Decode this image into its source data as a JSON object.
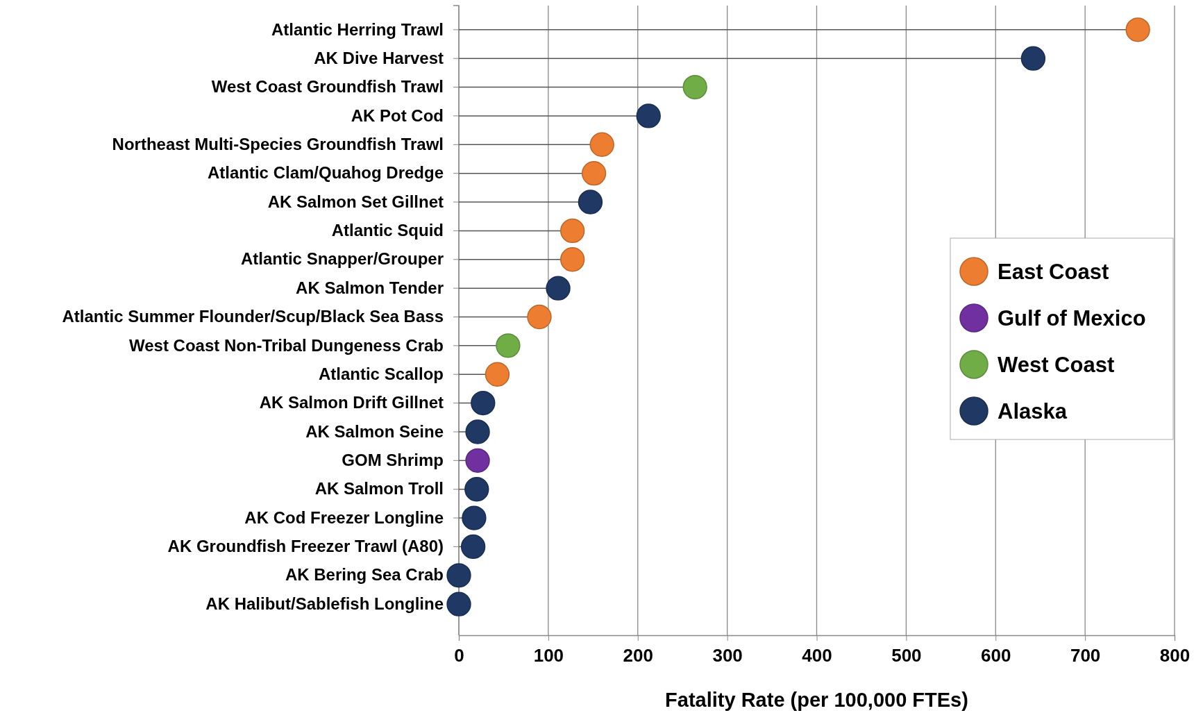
{
  "chart_data": {
    "type": "lollipop",
    "orientation": "horizontal",
    "xlabel": "Fatality Rate (per 100,000 FTEs)",
    "categories": [
      "Atlantic Herring Trawl",
      "AK Dive Harvest",
      "West Coast Groundfish Trawl",
      "AK Pot Cod",
      "Northeast Multi-Species Groundfish Trawl",
      "Atlantic Clam/Quahog Dredge",
      "AK Salmon Set Gillnet",
      "Atlantic Squid",
      "Atlantic Snapper/Grouper",
      "AK Salmon Tender",
      "Atlantic Summer Flounder/Scup/Black Sea Bass",
      "West Coast Non-Tribal Dungeness Crab",
      "Atlantic Scallop",
      "AK Salmon Drift Gillnet",
      "AK Salmon Seine",
      "GOM Shrimp",
      "AK Salmon Troll",
      "AK Cod Freezer Longline",
      "AK Groundfish Freezer Trawl (A80)",
      "AK Bering Sea Crab",
      "AK Halibut/Sablefish Longline"
    ],
    "series": [
      {
        "name": "East Coast",
        "color": "#ed7d31",
        "values": [
          759,
          null,
          null,
          null,
          160,
          151,
          null,
          127,
          127,
          null,
          90,
          null,
          43,
          null,
          null,
          null,
          null,
          null,
          null,
          null,
          null
        ]
      },
      {
        "name": "Gulf of Mexico",
        "color": "#7030a0",
        "values": [
          null,
          null,
          null,
          null,
          null,
          null,
          null,
          null,
          null,
          null,
          null,
          null,
          null,
          null,
          null,
          21,
          null,
          null,
          null,
          null,
          null
        ]
      },
      {
        "name": "West Coast",
        "color": "#70ad47",
        "values": [
          null,
          null,
          264,
          null,
          null,
          null,
          null,
          null,
          null,
          null,
          null,
          55,
          null,
          null,
          null,
          null,
          null,
          null,
          null,
          null,
          null
        ]
      },
      {
        "name": "Alaska",
        "color": "#1f3864",
        "values": [
          null,
          642,
          null,
          212,
          null,
          null,
          147,
          null,
          null,
          111,
          null,
          null,
          null,
          27,
          21,
          null,
          20,
          17,
          16,
          0,
          0
        ]
      }
    ],
    "xlim": [
      0,
      800
    ],
    "xticks": [
      0,
      100,
      200,
      300,
      400,
      500,
      600,
      700,
      800
    ],
    "grid": "x",
    "legend": "right",
    "marker": "circle"
  }
}
